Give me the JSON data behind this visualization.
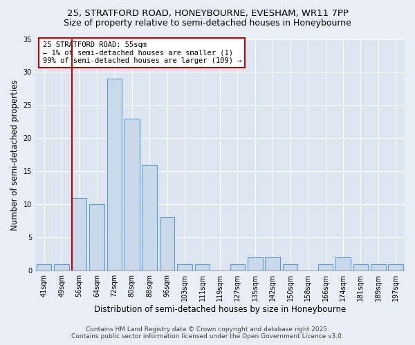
{
  "title1": "25, STRATFORD ROAD, HONEYBOURNE, EVESHAM, WR11 7PP",
  "title2": "Size of property relative to semi-detached houses in Honeybourne",
  "xlabel": "Distribution of semi-detached houses by size in Honeybourne",
  "ylabel": "Number of semi-detached properties",
  "categories": [
    "41sqm",
    "49sqm",
    "56sqm",
    "64sqm",
    "72sqm",
    "80sqm",
    "88sqm",
    "96sqm",
    "103sqm",
    "111sqm",
    "119sqm",
    "127sqm",
    "135sqm",
    "142sqm",
    "150sqm",
    "158sqm",
    "166sqm",
    "174sqm",
    "181sqm",
    "189sqm",
    "197sqm"
  ],
  "values": [
    1,
    1,
    11,
    10,
    29,
    23,
    16,
    8,
    1,
    1,
    0,
    1,
    2,
    2,
    1,
    0,
    1,
    2,
    1,
    1,
    1
  ],
  "bar_color": "#c9d9ea",
  "bar_edge_color": "#5b9bd5",
  "highlight_index": 2,
  "highlight_color": "#c00000",
  "annotation_title": "25 STRATFORD ROAD: 55sqm",
  "annotation_line1": "← 1% of semi-detached houses are smaller (1)",
  "annotation_line2": "99% of semi-detached houses are larger (109) →",
  "annotation_box_color": "#c00000",
  "ylim": [
    0,
    35
  ],
  "yticks": [
    0,
    5,
    10,
    15,
    20,
    25,
    30,
    35
  ],
  "footer1": "Contains HM Land Registry data © Crown copyright and database right 2025.",
  "footer2": "Contains public sector information licensed under the Open Government Licence v3.0.",
  "bg_color": "#e8eef5",
  "plot_bg_color": "#dde6f0",
  "grid_color": "#ffffff",
  "title_fontsize": 9.5,
  "subtitle_fontsize": 9,
  "label_fontsize": 8.5,
  "tick_fontsize": 7,
  "annotation_fontsize": 7.5,
  "footer_fontsize": 6.5
}
